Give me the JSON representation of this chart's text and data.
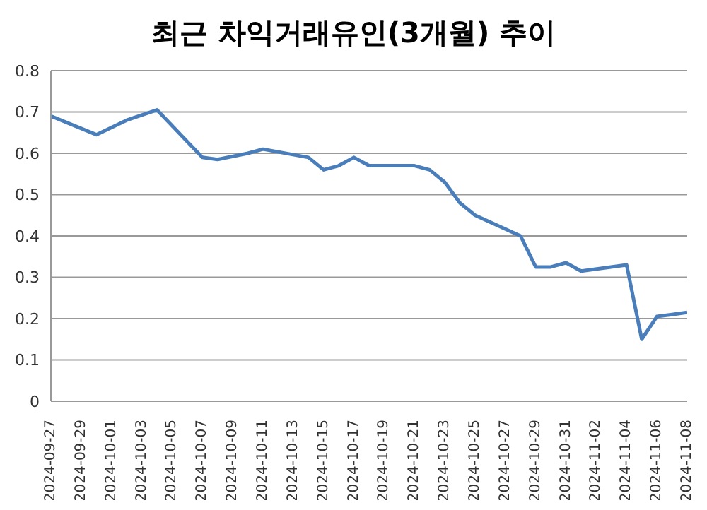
{
  "chart_data": {
    "type": "line",
    "title": "최근 차익거래유인(3개월) 추이",
    "x": [
      "2024-09-27",
      "2024-09-30",
      "2024-10-02",
      "2024-10-04",
      "2024-10-07",
      "2024-10-08",
      "2024-10-10",
      "2024-10-11",
      "2024-10-14",
      "2024-10-15",
      "2024-10-16",
      "2024-10-17",
      "2024-10-18",
      "2024-10-21",
      "2024-10-22",
      "2024-10-23",
      "2024-10-24",
      "2024-10-25",
      "2024-10-28",
      "2024-10-29",
      "2024-10-30",
      "2024-10-31",
      "2024-11-01",
      "2024-11-04",
      "2024-11-05",
      "2024-11-06",
      "2024-11-07",
      "2024-11-08"
    ],
    "series": [
      {
        "color": "#4a7ebb",
        "values": [
          0.69,
          0.645,
          0.68,
          0.705,
          0.59,
          0.585,
          0.6,
          0.61,
          0.59,
          0.56,
          0.57,
          0.59,
          0.57,
          0.57,
          0.56,
          0.53,
          0.48,
          0.45,
          0.4,
          0.325,
          0.325,
          0.335,
          0.315,
          0.33,
          0.15,
          0.205,
          0.21,
          0.215
        ]
      }
    ],
    "xlim": [
      "2024-09-27",
      "2024-11-08"
    ],
    "xticks": [
      "2024-09-27",
      "2024-09-29",
      "2024-10-01",
      "2024-10-03",
      "2024-10-05",
      "2024-10-07",
      "2024-10-09",
      "2024-10-11",
      "2024-10-13",
      "2024-10-15",
      "2024-10-17",
      "2024-10-19",
      "2024-10-21",
      "2024-10-23",
      "2024-10-25",
      "2024-10-27",
      "2024-10-29",
      "2024-10-31",
      "2024-11-02",
      "2024-11-04",
      "2024-11-06",
      "2024-11-08"
    ],
    "ylim": [
      0,
      0.8
    ],
    "yticks": [
      0,
      0.1,
      0.2,
      0.3,
      0.4,
      0.5,
      0.6,
      0.7,
      0.8
    ],
    "grid": "y",
    "legend": false,
    "marker": "none",
    "line_style": "solid"
  }
}
